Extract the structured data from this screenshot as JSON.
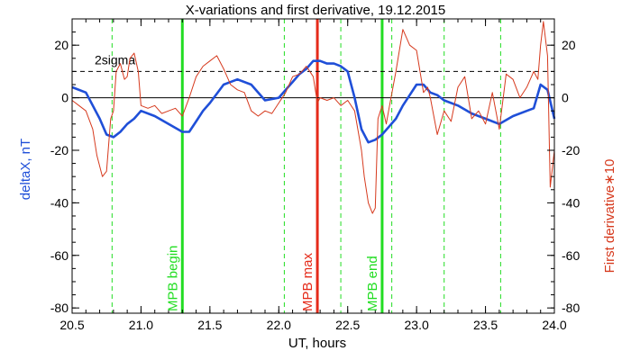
{
  "chart_data": {
    "type": "line",
    "title": "X-variations and first derivative, 19.12.2015",
    "xlabel": "UT, hours",
    "ylabel_left": "deltaX, nT",
    "ylabel_right": "First derivative∗10",
    "xlim": [
      20.5,
      24.0
    ],
    "ylim": [
      -82,
      30
    ],
    "x_ticks": [
      "20.5",
      "21.0",
      "21.5",
      "22.0",
      "22.5",
      "23.0",
      "23.5",
      "24.0"
    ],
    "y_ticks": [
      "-80",
      "-60",
      "-40",
      "-20",
      "0",
      "20"
    ],
    "grid": false,
    "colors": {
      "deltaX": "#1f4fd8",
      "derivative": "#d63a1e",
      "mpb": "#22dd22",
      "mpb_max": "#e52b1a"
    },
    "threshold": {
      "label": "2sigma",
      "value": 10,
      "style": "dashed"
    },
    "vertical_markers": [
      {
        "label": "MPB begin",
        "x": 21.3,
        "color": "#22dd22",
        "style": "solid"
      },
      {
        "label": "MPB max",
        "x": 22.28,
        "color": "#e52b1a",
        "style": "solid"
      },
      {
        "label": "MPB end",
        "x": 22.75,
        "color": "#22dd22",
        "style": "solid"
      }
    ],
    "dashed_markers": [
      20.79,
      22.04,
      22.45,
      22.82,
      23.2,
      23.61
    ],
    "series": [
      {
        "key": "deltaX",
        "x": [
          20.5,
          20.6,
          20.7,
          20.75,
          20.8,
          20.85,
          20.9,
          20.95,
          21.0,
          21.1,
          21.2,
          21.3,
          21.35,
          21.4,
          21.45,
          21.5,
          21.6,
          21.7,
          21.8,
          21.9,
          22.0,
          22.05,
          22.1,
          22.15,
          22.2,
          22.25,
          22.3,
          22.35,
          22.4,
          22.45,
          22.5,
          22.55,
          22.6,
          22.65,
          22.7,
          22.75,
          22.8,
          22.85,
          22.9,
          22.95,
          23.0,
          23.05,
          23.1,
          23.15,
          23.2,
          23.3,
          23.4,
          23.5,
          23.6,
          23.7,
          23.8,
          23.85,
          23.9,
          23.95,
          24.0
        ],
        "values": [
          4,
          2,
          -8,
          -14,
          -15,
          -13,
          -10,
          -8,
          -5,
          -7,
          -10,
          -13,
          -13,
          -9,
          -5,
          -2,
          5,
          7,
          5,
          -1,
          0,
          3,
          6,
          9,
          11,
          14,
          14,
          13,
          13,
          12,
          10,
          0,
          -12,
          -17,
          -16,
          -14,
          -11,
          -8,
          -3,
          1,
          5,
          5,
          2,
          1,
          -1,
          -3,
          -6,
          -8,
          -10,
          -7,
          -5,
          -4,
          5,
          3,
          -8
        ]
      },
      {
        "key": "derivative",
        "x": [
          20.5,
          20.55,
          20.6,
          20.65,
          20.68,
          20.72,
          20.75,
          20.78,
          20.8,
          20.82,
          20.85,
          20.88,
          20.9,
          20.92,
          20.95,
          20.98,
          21.0,
          21.05,
          21.1,
          21.15,
          21.2,
          21.25,
          21.3,
          21.35,
          21.4,
          21.45,
          21.5,
          21.55,
          21.6,
          21.65,
          21.7,
          21.75,
          21.8,
          21.85,
          21.9,
          21.95,
          22.0,
          22.05,
          22.1,
          22.15,
          22.2,
          22.25,
          22.28,
          22.3,
          22.35,
          22.4,
          22.45,
          22.5,
          22.55,
          22.6,
          22.62,
          22.65,
          22.68,
          22.7,
          22.72,
          22.75,
          22.78,
          22.8,
          22.85,
          22.9,
          22.95,
          23.0,
          23.05,
          23.08,
          23.1,
          23.15,
          23.2,
          23.25,
          23.3,
          23.35,
          23.4,
          23.45,
          23.5,
          23.55,
          23.6,
          23.65,
          23.7,
          23.75,
          23.8,
          23.85,
          23.88,
          23.9,
          23.92,
          23.95,
          23.97,
          24.0
        ],
        "values": [
          -1,
          -3,
          -5,
          -12,
          -22,
          -30,
          -28,
          -8,
          -5,
          10,
          13,
          7,
          8,
          15,
          17,
          10,
          -3,
          -4,
          -3,
          -6,
          -5,
          -4,
          -7,
          0,
          8,
          12,
          14,
          16,
          11,
          5,
          3,
          2,
          -5,
          -7,
          -5,
          -6,
          -2,
          2,
          8,
          9,
          12,
          8,
          -2,
          0,
          -1,
          0,
          -3,
          -1,
          -5,
          -20,
          -30,
          -40,
          -44,
          -42,
          -8,
          -3,
          -10,
          -4,
          10,
          26,
          20,
          18,
          2,
          4,
          0,
          -14,
          -5,
          -9,
          4,
          8,
          -8,
          -5,
          -10,
          2,
          -12,
          9,
          7,
          0,
          4,
          10,
          7,
          20,
          29,
          16,
          -34,
          -20
        ]
      }
    ]
  }
}
